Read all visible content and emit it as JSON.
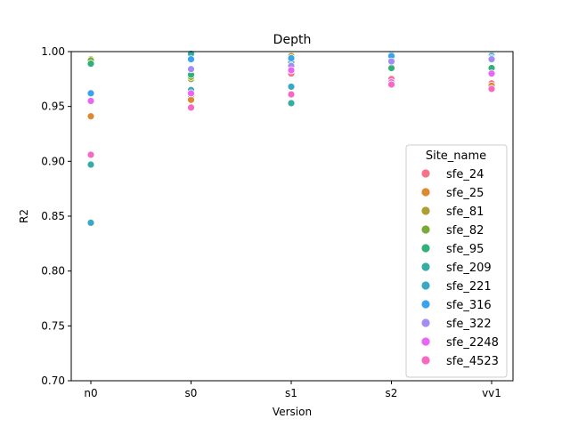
{
  "chart_data": {
    "type": "scatter",
    "title": "Depth",
    "xlabel": "Version",
    "ylabel": "R2",
    "categories": [
      "n0",
      "s0",
      "s1",
      "s2",
      "vv1"
    ],
    "ylim": [
      0.7,
      1.0
    ],
    "yticks": [
      "0.70",
      "0.75",
      "0.80",
      "0.85",
      "0.90",
      "0.95",
      "1.00"
    ],
    "grid": false,
    "legend": {
      "title": "Site_name",
      "placement": "lower-right"
    },
    "series": [
      {
        "name": "sfe_24",
        "color": "#f77189",
        "values": [
          null,
          0.96,
          0.98,
          0.975,
          0.971
        ]
      },
      {
        "name": "sfe_25",
        "color": "#dc8932",
        "values": [
          0.941,
          0.956,
          0.985,
          0.985,
          0.969
        ]
      },
      {
        "name": "sfe_81",
        "color": "#ae9d31",
        "values": [
          0.993,
          0.975,
          0.996,
          0.99,
          0.985
        ]
      },
      {
        "name": "sfe_82",
        "color": "#77ab31",
        "values": [
          0.992,
          0.977,
          0.992,
          0.985,
          0.985
        ]
      },
      {
        "name": "sfe_95",
        "color": "#33b07a",
        "values": [
          0.989,
          0.979,
          0.99,
          0.985,
          0.985
        ]
      },
      {
        "name": "sfe_209",
        "color": "#36ada4",
        "values": [
          0.897,
          0.998,
          0.953,
          0.997,
          0.997
        ]
      },
      {
        "name": "sfe_221",
        "color": "#38a9c5",
        "values": [
          0.844,
          0.965,
          0.968,
          0.993,
          0.996
        ]
      },
      {
        "name": "sfe_316",
        "color": "#3ba3ec",
        "values": [
          0.962,
          0.993,
          0.994,
          0.996,
          0.994
        ]
      },
      {
        "name": "sfe_322",
        "color": "#a48cf4",
        "values": [
          null,
          0.984,
          0.987,
          0.991,
          0.993
        ]
      },
      {
        "name": "sfe_2248",
        "color": "#e866f4",
        "values": [
          0.955,
          0.962,
          0.983,
          0.972,
          0.98
        ]
      },
      {
        "name": "sfe_4523",
        "color": "#f668c2",
        "values": [
          0.906,
          0.949,
          0.961,
          0.97,
          0.966
        ]
      }
    ]
  }
}
